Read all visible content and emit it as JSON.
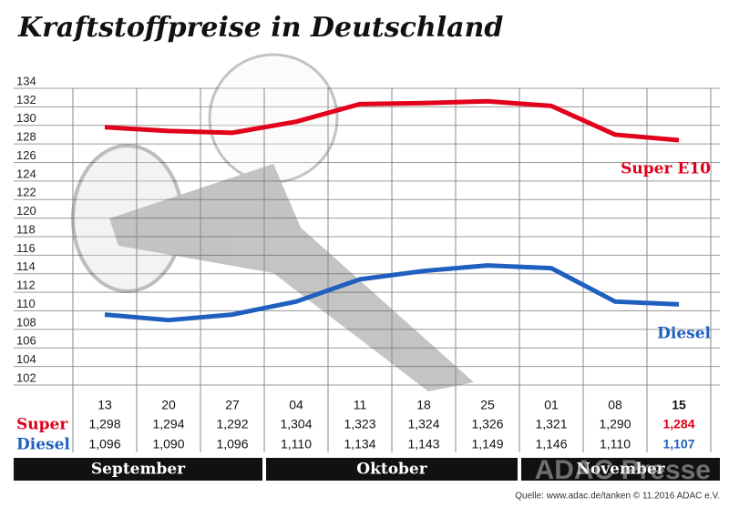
{
  "chart_data": {
    "type": "line",
    "title": "Kraftstoffpreise in Deutschland",
    "categories": [
      "13",
      "20",
      "27",
      "04",
      "11",
      "18",
      "25",
      "01",
      "08",
      "15"
    ],
    "month_groups": [
      {
        "label": "September",
        "span": 3
      },
      {
        "label": "Oktober",
        "span": 4
      },
      {
        "label": "November",
        "span": 3
      }
    ],
    "series": [
      {
        "name": "Super E10",
        "row_label": "Super",
        "color": "#e2001a",
        "values": [
          129.8,
          129.4,
          129.2,
          130.4,
          132.3,
          132.4,
          132.6,
          132.1,
          129.0,
          128.4
        ],
        "value_labels": [
          "1,298",
          "1,294",
          "1,292",
          "1,304",
          "1,323",
          "1,324",
          "1,326",
          "1,321",
          "1,290",
          "1,284"
        ]
      },
      {
        "name": "Diesel",
        "row_label": "Diesel",
        "color": "#1f5fbf",
        "values": [
          109.6,
          109.0,
          109.6,
          111.0,
          113.4,
          114.3,
          114.9,
          114.6,
          111.0,
          110.7
        ],
        "value_labels": [
          "1,096",
          "1,090",
          "1,096",
          "1,110",
          "1,134",
          "1,143",
          "1,149",
          "1,146",
          "1,110",
          "1,107"
        ]
      }
    ],
    "ylim": [
      102,
      134
    ],
    "yticks": [
      102,
      104,
      106,
      108,
      110,
      112,
      114,
      116,
      118,
      120,
      122,
      124,
      126,
      128,
      130,
      132,
      134
    ],
    "grid": true,
    "highlight_last": true,
    "source": "Quelle: www.adac.de/tanken  © 11.2016  ADAC e.V.",
    "watermark": "ADAC Presse"
  }
}
